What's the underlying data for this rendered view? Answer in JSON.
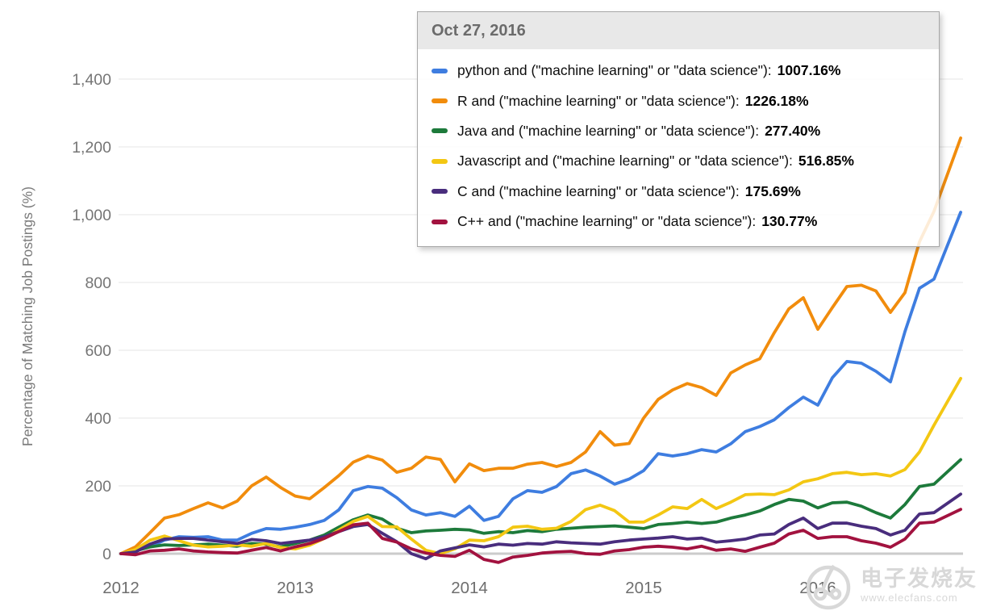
{
  "page": {
    "background": "#ffffff"
  },
  "tooltip": {
    "title": "Oct 27, 2016",
    "rows": [
      {
        "key": "python",
        "label": "python and (\"machine learning\" or \"data science\"):",
        "value": "1007.16%",
        "color": "#3e7de0"
      },
      {
        "key": "R",
        "label": "R and (\"machine learning\" or \"data science\"):",
        "value": "1226.18%",
        "color": "#f18c0c"
      },
      {
        "key": "Java",
        "label": "Java and (\"machine learning\" or \"data science\"):",
        "value": "277.40%",
        "color": "#1d7a3b"
      },
      {
        "key": "Javascript",
        "label": "Javascript and (\"machine learning\" or \"data science\"):",
        "value": "516.85%",
        "color": "#f3c713"
      },
      {
        "key": "C",
        "label": "C and (\"machine learning\" or \"data science\"):",
        "value": "175.69%",
        "color": "#492d7d"
      },
      {
        "key": "C++",
        "label": "C++ and (\"machine learning\" or \"data science\"):",
        "value": "130.77%",
        "color": "#a2123f"
      }
    ]
  },
  "chart_data": {
    "type": "line",
    "title": "",
    "xlabel": "",
    "ylabel": "Percentage of Matching Job Postings (%)",
    "grid": "horizontal",
    "legend_position": "tooltip-top-right",
    "x_tick_labels": [
      "2012",
      "2013",
      "2014",
      "2015",
      "2016"
    ],
    "y_tick_values": [
      0,
      200,
      400,
      600,
      800,
      1000,
      1200,
      1400
    ],
    "y_tick_labels": [
      "0",
      "200",
      "400",
      "600",
      "800",
      "1,000",
      "1,200",
      "1,400"
    ],
    "ylim": [
      -40,
      1450
    ],
    "x_start_year": 2012,
    "x_step_months": 1,
    "x_final_year": 2016.82,
    "x_final_label": "Oct 27, 2016",
    "series": [
      {
        "key": "python",
        "name": "python and (\"machine learning\" or \"data science\")",
        "color": "#3e7de0",
        "final_value": 1007.16,
        "values": [
          0,
          8,
          20,
          40,
          50,
          48,
          50,
          40,
          40,
          60,
          74,
          72,
          78,
          86,
          98,
          129,
          186,
          198,
          193,
          165,
          129,
          114,
          121,
          110,
          140,
          98,
          110,
          162,
          186,
          181,
          198,
          236,
          247,
          229,
          205,
          220,
          245,
          295,
          288,
          295,
          307,
          300,
          324,
          360,
          375,
          395,
          431,
          462,
          438,
          519,
          567,
          562,
          538,
          507,
          655,
          783,
          810,
          1007.16
        ]
      },
      {
        "key": "R",
        "name": "R and (\"machine learning\" or \"data science\")",
        "color": "#f18c0c",
        "final_value": 1226.18,
        "values": [
          0,
          20,
          62,
          105,
          115,
          133,
          150,
          135,
          155,
          200,
          226,
          195,
          170,
          162,
          195,
          230,
          270,
          288,
          276,
          240,
          252,
          285,
          278,
          212,
          265,
          245,
          252,
          252,
          264,
          269,
          257,
          269,
          300,
          360,
          320,
          325,
          400,
          455,
          483,
          502,
          490,
          467,
          533,
          557,
          575,
          652,
          722,
          755,
          662,
          726,
          788,
          792,
          775,
          712,
          770,
          920,
          1010,
          1226.18
        ]
      },
      {
        "key": "Java",
        "name": "Java and (\"machine learning\" or \"data science\")",
        "color": "#1d7a3b",
        "final_value": 277.4,
        "values": [
          0,
          8,
          20,
          26,
          24,
          26,
          28,
          25,
          22,
          30,
          28,
          20,
          30,
          40,
          55,
          78,
          100,
          114,
          102,
          75,
          62,
          67,
          69,
          72,
          70,
          60,
          65,
          62,
          68,
          65,
          72,
          75,
          78,
          80,
          82,
          78,
          74,
          86,
          89,
          93,
          89,
          93,
          105,
          114,
          126,
          145,
          160,
          155,
          135,
          150,
          152,
          140,
          121,
          105,
          145,
          198,
          205,
          277.4
        ]
      },
      {
        "key": "Javascript",
        "name": "Javascript and (\"machine learning\" or \"data science\")",
        "color": "#f3c713",
        "final_value": 516.85,
        "values": [
          0,
          12,
          40,
          52,
          38,
          25,
          20,
          22,
          26,
          22,
          30,
          18,
          14,
          25,
          45,
          70,
          95,
          110,
          80,
          79,
          43,
          10,
          0,
          14,
          40,
          38,
          50,
          78,
          81,
          72,
          75,
          95,
          130,
          143,
          127,
          93,
          93,
          114,
          138,
          133,
          160,
          133,
          152,
          174,
          176,
          174,
          188,
          212,
          221,
          236,
          240,
          233,
          236,
          229,
          248,
          300,
          379,
          516.85
        ]
      },
      {
        "key": "C",
        "name": "C and (\"machine learning\" or \"data science\")",
        "color": "#492d7d",
        "final_value": 175.69,
        "values": [
          0,
          5,
          28,
          43,
          45,
          45,
          40,
          35,
          30,
          42,
          38,
          30,
          35,
          40,
          50,
          65,
          80,
          86,
          60,
          35,
          0,
          -15,
          8,
          17,
          26,
          20,
          28,
          25,
          30,
          28,
          35,
          32,
          30,
          28,
          35,
          40,
          43,
          46,
          50,
          43,
          46,
          34,
          38,
          43,
          55,
          58,
          86,
          105,
          74,
          90,
          90,
          81,
          74,
          55,
          69,
          117,
          121,
          175.69
        ]
      },
      {
        "key": "C++",
        "name": "C++ and (\"machine learning\" or \"data science\")",
        "color": "#a2123f",
        "final_value": 130.77,
        "values": [
          0,
          -3,
          8,
          10,
          14,
          8,
          5,
          3,
          2,
          10,
          18,
          8,
          20,
          30,
          45,
          65,
          85,
          90,
          45,
          34,
          14,
          2,
          -5,
          -8,
          10,
          -17,
          -26,
          -10,
          -5,
          2,
          5,
          7,
          0,
          -2,
          8,
          12,
          19,
          22,
          19,
          14,
          22,
          10,
          14,
          7,
          19,
          31,
          58,
          69,
          45,
          50,
          50,
          38,
          31,
          19,
          43,
          90,
          93,
          130.77
        ]
      }
    ]
  },
  "watermark": {
    "name": "电子发烧友",
    "url": "www.elecfans.com",
    "color": "#d8d8d8"
  }
}
